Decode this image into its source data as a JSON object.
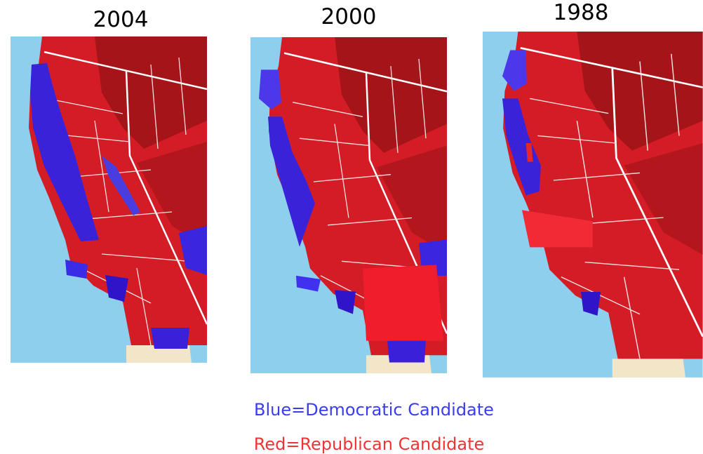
{
  "maps": [
    {
      "year": "2004"
    },
    {
      "year": "2000"
    },
    {
      "year": "1988"
    }
  ],
  "legend": {
    "blue": "Blue=Democratic Candidate",
    "red": "Red=Republican Candidate"
  }
}
